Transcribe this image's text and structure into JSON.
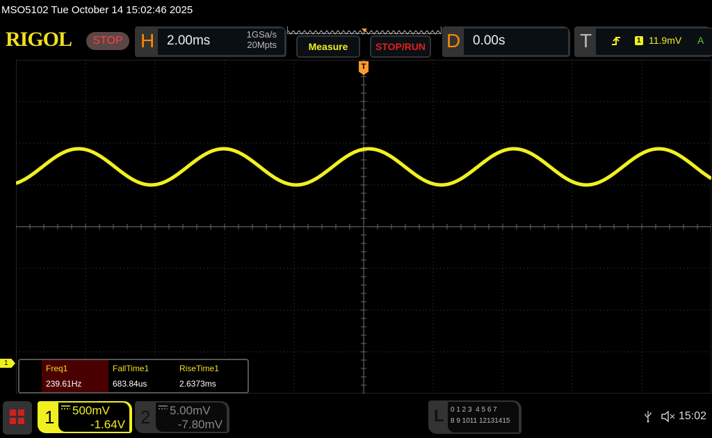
{
  "title": "MSO5102  Tue October 14 15:02:46 2025",
  "logo": "RIGOL",
  "run_state": "STOP",
  "horizontal": {
    "letter": "H",
    "timebase": "2.00ms",
    "sample_rate": "1GSa/s",
    "memory_depth": "20Mpts"
  },
  "buttons": {
    "measure": "Measure",
    "stop_run": "STOP/RUN"
  },
  "delay": {
    "letter": "D",
    "value": "0.00s"
  },
  "trigger": {
    "letter": "T",
    "channel": "1",
    "level": "11.9mV",
    "mode": "A",
    "marker": "T",
    "slope_icon": "rising-edge-icon"
  },
  "channel_marker": "1",
  "measurements": [
    {
      "label": "Freq1",
      "value": "239.61Hz",
      "highlighted": true
    },
    {
      "label": "FallTime1",
      "value": "683.84us"
    },
    {
      "label": "RiseTime1",
      "value": "2.6373ms"
    }
  ],
  "channels": [
    {
      "number": "1",
      "scale": "500mV",
      "offset": "-1.64V",
      "color": "#f0f020",
      "active": true
    },
    {
      "number": "2",
      "scale": "5.00mV",
      "offset": "-7.80mV",
      "color": "#888888",
      "active": false
    }
  ],
  "logic": {
    "letter": "L",
    "row1": "0 1 2 3  4 5 6 7",
    "row2": "8 9 1011 12131415"
  },
  "status": {
    "time": "15:02",
    "icons": [
      "usb-icon",
      "mute-icon"
    ]
  },
  "waveform": {
    "channel": "1",
    "frequency_hz": 239.61,
    "color": "#f0f020"
  }
}
